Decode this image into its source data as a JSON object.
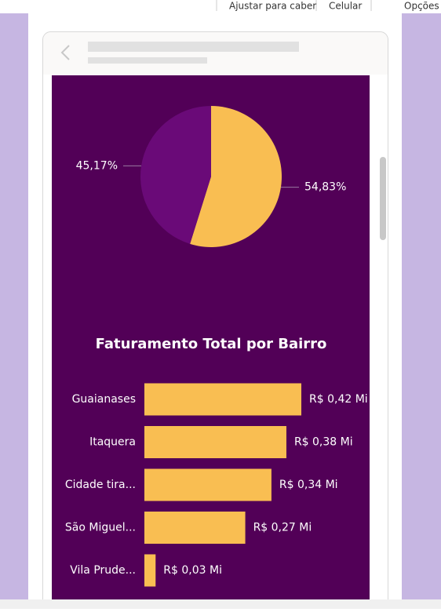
{
  "toolbar": {
    "items": [
      "Ajustar para caber",
      "Celular",
      "Opções d"
    ]
  },
  "chart_data": [
    {
      "type": "pie",
      "values": [
        54.83,
        45.17
      ],
      "value_labels": [
        "54,83%",
        "45,17%"
      ],
      "colors": [
        "#f9be52",
        "#6a0a78"
      ]
    },
    {
      "type": "bar",
      "orientation": "horizontal",
      "title": "Faturamento Total por Bairro",
      "categories": [
        "Guaianases",
        "Itaquera",
        "Cidade tira...",
        "São Miguel...",
        "Vila Prude..."
      ],
      "values": [
        0.42,
        0.38,
        0.34,
        0.27,
        0.03
      ],
      "value_labels": [
        "R$ 0,42 Mi",
        "R$ 0,38 Mi",
        "R$ 0,34 Mi",
        "R$ 0,27 Mi",
        "R$ 0,03 Mi"
      ],
      "color": "#f9be52"
    }
  ]
}
